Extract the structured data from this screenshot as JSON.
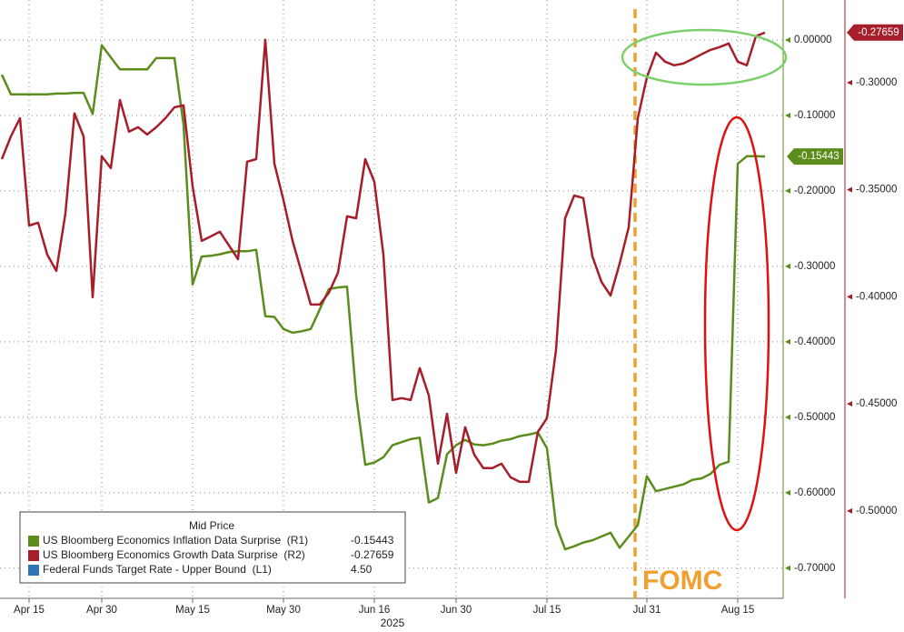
{
  "chart_data": {
    "type": "line",
    "categories": [
      null,
      null,
      null,
      "Apr 15",
      null,
      null,
      null,
      null,
      null,
      null,
      null,
      "Apr 30",
      null,
      null,
      null,
      null,
      null,
      null,
      null,
      null,
      null,
      "May 15",
      null,
      null,
      null,
      null,
      null,
      null,
      null,
      null,
      null,
      "May 30",
      null,
      null,
      null,
      null,
      null,
      null,
      null,
      null,
      null,
      "Jun 16",
      null,
      null,
      null,
      null,
      null,
      null,
      null,
      null,
      "Jun 30",
      null,
      null,
      null,
      null,
      null,
      null,
      null,
      null,
      null,
      "Jul 15",
      null,
      null,
      null,
      null,
      null,
      null,
      null,
      null,
      null,
      null,
      "Jul 31",
      null,
      null,
      null,
      null,
      null,
      null,
      null,
      null,
      null,
      "Aug 15",
      null,
      null,
      null
    ],
    "year_label": "2025",
    "series": [
      {
        "name": "US Bloomberg Economics Inflation Data Surprise  (R1)",
        "color": "#5b8c1c",
        "last_value": -0.15443,
        "values": [
          -0.046,
          -0.072,
          -0.072,
          -0.072,
          -0.072,
          -0.072,
          -0.071,
          -0.071,
          -0.07,
          -0.07,
          -0.098,
          -0.007,
          -0.023,
          -0.039,
          -0.039,
          -0.039,
          -0.039,
          -0.024,
          -0.024,
          -0.024,
          -0.112,
          -0.324,
          -0.287,
          -0.286,
          -0.284,
          -0.281,
          -0.28,
          -0.28,
          -0.278,
          -0.366,
          -0.367,
          -0.383,
          -0.388,
          -0.386,
          -0.383,
          -0.357,
          -0.33,
          -0.328,
          -0.327,
          -0.471,
          -0.563,
          -0.56,
          -0.553,
          -0.537,
          -0.533,
          -0.529,
          -0.527,
          -0.613,
          -0.607,
          -0.549,
          -0.537,
          -0.53,
          -0.536,
          -0.537,
          -0.535,
          -0.531,
          -0.529,
          -0.525,
          -0.523,
          -0.52,
          -0.541,
          -0.643,
          -0.675,
          -0.671,
          -0.666,
          -0.663,
          -0.658,
          -0.653,
          -0.673,
          -0.658,
          -0.643,
          -0.578,
          -0.598,
          -0.595,
          -0.592,
          -0.589,
          -0.583,
          -0.581,
          -0.575,
          -0.563,
          -0.559,
          -0.164,
          -0.154,
          -0.154,
          -0.15443
        ]
      },
      {
        "name": "US Bloomberg Economics Growth Data Surprise  (R2)",
        "color": "#a61e2a",
        "axis": "y2",
        "last_value": -0.27659,
        "values": [
          -0.3357,
          -0.3251,
          -0.3166,
          -0.3667,
          -0.3654,
          -0.3803,
          -0.3879,
          -0.3611,
          -0.3144,
          -0.3251,
          -0.4002,
          -0.3344,
          -0.3399,
          -0.3081,
          -0.3229,
          -0.3208,
          -0.3242,
          -0.3208,
          -0.3166,
          -0.3115,
          -0.3106,
          -0.3484,
          -0.3739,
          -0.3718,
          -0.3696,
          -0.376,
          -0.3824,
          -0.3369,
          -0.3357,
          -0.28,
          -0.3378,
          -0.3548,
          -0.3739,
          -0.3887,
          -0.4036,
          -0.4036,
          -0.3981,
          -0.3887,
          -0.3624,
          -0.3633,
          -0.3357,
          -0.3463,
          -0.3803,
          -0.4482,
          -0.4473,
          -0.4482,
          -0.4333,
          -0.4461,
          -0.4779,
          -0.4546,
          -0.4822,
          -0.4609,
          -0.4737,
          -0.48,
          -0.48,
          -0.4779,
          -0.4843,
          -0.4864,
          -0.4864,
          -0.4631,
          -0.4567,
          -0.4248,
          -0.3633,
          -0.3527,
          -0.3539,
          -0.3811,
          -0.393,
          -0.3994,
          -0.3845,
          -0.3675,
          -0.3166,
          -0.2975,
          -0.286,
          -0.2902,
          -0.2919,
          -0.2911,
          -0.289,
          -0.2868,
          -0.2847,
          -0.2834,
          -0.2817,
          -0.2902,
          -0.2919,
          -0.2783,
          -0.27659
        ]
      },
      {
        "name": "Federal Funds Target Rate - Upper Bound  (L1)",
        "color": "#2e75b6",
        "last_value": {
          "value": 4.5,
          "label": "4.50"
        }
      }
    ],
    "ylim": [
      -0.74,
      0.053
    ],
    "yticks": [
      {
        "value": 0,
        "label": "0.00000"
      },
      {
        "value": -0.1,
        "label": "-0.10000"
      },
      {
        "value": -0.2,
        "label": "-0.20000"
      },
      {
        "value": -0.3,
        "label": "-0.30000"
      },
      {
        "value": -0.4,
        "label": "-0.40000"
      },
      {
        "value": -0.5,
        "label": "-0.50000"
      },
      {
        "value": -0.6,
        "label": "-0.60000"
      },
      {
        "value": -0.7,
        "label": "-0.70000"
      }
    ],
    "y2lim": [
      -0.5408,
      -0.2614
    ],
    "y2ticks": [
      {
        "value": -0.3,
        "label": "-0.30000"
      },
      {
        "value": -0.35,
        "label": "-0.35000"
      },
      {
        "value": -0.4,
        "label": "-0.40000"
      },
      {
        "value": -0.45,
        "label": "-0.45000"
      },
      {
        "value": -0.5,
        "label": "-0.50000"
      }
    ],
    "legend_title": "Mid Price",
    "annotation": "FOMC",
    "grid": true
  }
}
